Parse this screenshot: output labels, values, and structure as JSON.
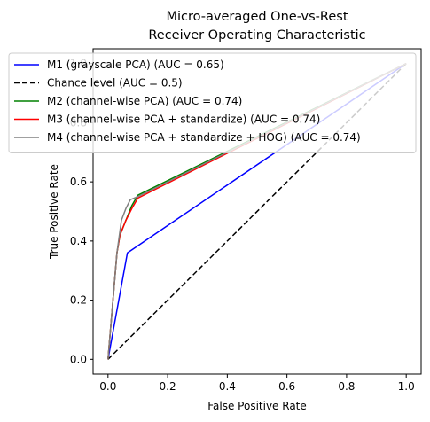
{
  "chart_data": {
    "type": "line",
    "title_lines": [
      "Micro-averaged One-vs-Rest",
      "Receiver Operating Characteristic"
    ],
    "xlabel": "False Positive Rate",
    "ylabel": "True Positive Rate",
    "xlim": [
      -0.05,
      1.05
    ],
    "ylim": [
      -0.05,
      1.05
    ],
    "xticks": [
      "0.0",
      "0.2",
      "0.4",
      "0.6",
      "0.8",
      "1.0"
    ],
    "yticks": [
      "0.0",
      "0.2",
      "0.4",
      "0.6",
      "0.8",
      "1.0"
    ],
    "legend_position": "top-left",
    "series": [
      {
        "name": "M1 (grayscale PCA) (AUC = 0.65)",
        "color": "#0000ff",
        "dash": "solid",
        "x": [
          0.0,
          0.065,
          1.0
        ],
        "y": [
          0.0,
          0.36,
          1.0
        ]
      },
      {
        "name": "Chance level (AUC = 0.5)",
        "color": "#000000",
        "dash": "dashed",
        "x": [
          0.0,
          1.0
        ],
        "y": [
          0.0,
          1.0
        ]
      },
      {
        "name": "M2 (channel-wise PCA) (AUC = 0.74)",
        "color": "#008000",
        "dash": "solid",
        "x": [
          0.0,
          0.03,
          0.04,
          0.06,
          0.08,
          0.1,
          1.0
        ],
        "y": [
          0.0,
          0.36,
          0.42,
          0.47,
          0.52,
          0.555,
          1.0
        ]
      },
      {
        "name": "M3 (channel-wise PCA + standardize) (AUC = 0.74)",
        "color": "#ff0000",
        "dash": "solid",
        "x": [
          0.0,
          0.03,
          0.04,
          0.06,
          0.08,
          0.1,
          1.0
        ],
        "y": [
          0.0,
          0.36,
          0.42,
          0.47,
          0.51,
          0.545,
          1.0
        ]
      },
      {
        "name": "M4 (channel-wise PCA + standardize + HOG) (AUC = 0.74)",
        "color": "#808080",
        "dash": "solid",
        "x": [
          0.0,
          0.03,
          0.045,
          0.06,
          0.075,
          0.1,
          1.0
        ],
        "y": [
          0.0,
          0.36,
          0.47,
          0.51,
          0.54,
          0.55,
          1.0
        ]
      }
    ]
  }
}
